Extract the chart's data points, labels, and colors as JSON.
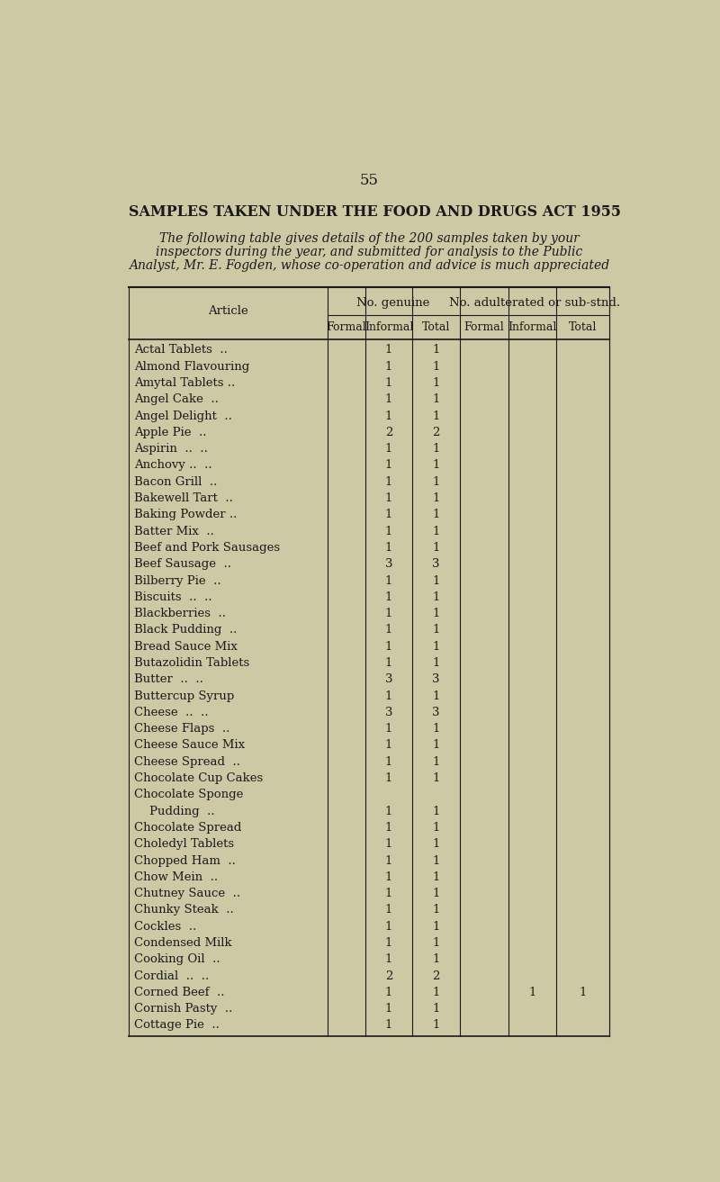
{
  "page_number": "55",
  "main_title": "SAMPLES TAKEN UNDER THE FOOD AND DRUGS ACT 1955",
  "subtitle_lines": [
    "The following table gives details of the 200 samples taken by your",
    "inspectors during the year, and submitted for analysis to the Public",
    "Analyst, Mr. E. Fogden, whose co-operation and advice is much appreciated"
  ],
  "col_group1": "No. genuine",
  "col_group2": "No. adulterated or sub-stnd.",
  "col_headers": [
    "Formal",
    "Informal",
    "Total",
    "Formal",
    "Informal",
    "Total"
  ],
  "article_col": "Article",
  "bg_color": "#cdc9a5",
  "text_color": "#1a1a1a",
  "rows": [
    {
      "article": "Actal Tablets  ..",
      "dots2": "..",
      "g_formal": "",
      "g_informal": "1",
      "g_total": "1",
      "a_formal": "",
      "a_informal": "",
      "a_total": ""
    },
    {
      "article": "Almond Flavouring",
      "dots2": "..",
      "g_formal": "",
      "g_informal": "1",
      "g_total": "1",
      "a_formal": "",
      "a_informal": "",
      "a_total": ""
    },
    {
      "article": "Amytal Tablets ..",
      "dots2": "..",
      "g_formal": "",
      "g_informal": "1",
      "g_total": "1",
      "a_formal": "",
      "a_informal": "",
      "a_total": ""
    },
    {
      "article": "Angel Cake  ..",
      "dots2": "..",
      "g_formal": "",
      "g_informal": "1",
      "g_total": "1",
      "a_formal": "",
      "a_informal": "",
      "a_total": ""
    },
    {
      "article": "Angel Delight  ..",
      "dots2": "..",
      "g_formal": "",
      "g_informal": "1",
      "g_total": "1",
      "a_formal": "",
      "a_informal": "",
      "a_total": ""
    },
    {
      "article": "Apple Pie  ..",
      "dots2": "..",
      "g_formal": "",
      "g_informal": "2",
      "g_total": "2",
      "a_formal": "",
      "a_informal": "",
      "a_total": ""
    },
    {
      "article": "Aspirin  ..  ..",
      "dots2": "..",
      "g_formal": "",
      "g_informal": "1",
      "g_total": "1",
      "a_formal": "",
      "a_informal": "",
      "a_total": ""
    },
    {
      "article": "Anchovy ..  ..",
      "dots2": "..",
      "g_formal": "",
      "g_informal": "1",
      "g_total": "1",
      "a_formal": "",
      "a_informal": "",
      "a_total": ""
    },
    {
      "article": "Bacon Grill  ..",
      "dots2": "..",
      "g_formal": "",
      "g_informal": "1",
      "g_total": "1",
      "a_formal": "",
      "a_informal": "",
      "a_total": ""
    },
    {
      "article": "Bakewell Tart  ..",
      "dots2": "..",
      "g_formal": "",
      "g_informal": "1",
      "g_total": "1",
      "a_formal": "",
      "a_informal": "",
      "a_total": ""
    },
    {
      "article": "Baking Powder ..",
      "dots2": "..",
      "g_formal": "",
      "g_informal": "1",
      "g_total": "1",
      "a_formal": "",
      "a_informal": "",
      "a_total": ""
    },
    {
      "article": "Batter Mix  ..",
      "dots2": "..",
      "g_formal": "",
      "g_informal": "1",
      "g_total": "1",
      "a_formal": "",
      "a_informal": "",
      "a_total": ""
    },
    {
      "article": "Beef and Pork Sausages",
      "dots2": "",
      "g_formal": "",
      "g_informal": "1",
      "g_total": "1",
      "a_formal": "",
      "a_informal": "",
      "a_total": ""
    },
    {
      "article": "Beef Sausage  ..",
      "dots2": "..",
      "g_formal": "",
      "g_informal": "3",
      "g_total": "3",
      "a_formal": "",
      "a_informal": "",
      "a_total": ""
    },
    {
      "article": "Bilberry Pie  ..",
      "dots2": "..",
      "g_formal": "",
      "g_informal": "1",
      "g_total": "1",
      "a_formal": "",
      "a_informal": "",
      "a_total": ""
    },
    {
      "article": "Biscuits  ..  ..",
      "dots2": "..",
      "g_formal": "",
      "g_informal": "1",
      "g_total": "1",
      "a_formal": "",
      "a_informal": "",
      "a_total": ""
    },
    {
      "article": "Blackberries  ..",
      "dots2": "..",
      "g_formal": "",
      "g_informal": "1",
      "g_total": "1",
      "a_formal": "",
      "a_informal": "",
      "a_total": ""
    },
    {
      "article": "Black Pudding  ..",
      "dots2": "..",
      "g_formal": "",
      "g_informal": "1",
      "g_total": "1",
      "a_formal": "",
      "a_informal": "",
      "a_total": ""
    },
    {
      "article": "Bread Sauce Mix",
      "dots2": "..",
      "g_formal": "",
      "g_informal": "1",
      "g_total": "1",
      "a_formal": "",
      "a_informal": "",
      "a_total": ""
    },
    {
      "article": "Butazolidin Tablets",
      "dots2": "..",
      "g_formal": "",
      "g_informal": "1",
      "g_total": "1",
      "a_formal": "",
      "a_informal": "",
      "a_total": ""
    },
    {
      "article": "Butter  ..  ..",
      "dots2": "..",
      "g_formal": "",
      "g_informal": "3",
      "g_total": "3",
      "a_formal": "",
      "a_informal": "",
      "a_total": ""
    },
    {
      "article": "Buttercup Syrup",
      "dots2": "..",
      "g_formal": "",
      "g_informal": "1",
      "g_total": "1",
      "a_formal": "",
      "a_informal": "",
      "a_total": ""
    },
    {
      "article": "Cheese  ..  ..",
      "dots2": "..",
      "g_formal": "",
      "g_informal": "3",
      "g_total": "3",
      "a_formal": "",
      "a_informal": "",
      "a_total": ""
    },
    {
      "article": "Cheese Flaps  ..",
      "dots2": "..",
      "g_formal": "",
      "g_informal": "1",
      "g_total": "1",
      "a_formal": "",
      "a_informal": "",
      "a_total": ""
    },
    {
      "article": "Cheese Sauce Mix",
      "dots2": "..",
      "g_formal": "",
      "g_informal": "1",
      "g_total": "1",
      "a_formal": "",
      "a_informal": "",
      "a_total": ""
    },
    {
      "article": "Cheese Spread  ..",
      "dots2": "..",
      "g_formal": "",
      "g_informal": "1",
      "g_total": "1",
      "a_formal": "",
      "a_informal": "",
      "a_total": ""
    },
    {
      "article": "Chocolate Cup Cakes",
      "dots2": "..",
      "g_formal": "",
      "g_informal": "1",
      "g_total": "1",
      "a_formal": "",
      "a_informal": "",
      "a_total": ""
    },
    {
      "article": "Chocolate Sponge",
      "dots2": "",
      "g_formal": "",
      "g_informal": "",
      "g_total": "",
      "a_formal": "",
      "a_informal": "",
      "a_total": "",
      "second_line": "    Pudding  ..",
      "sl_dots2": "..",
      "sl_g_informal": "1",
      "sl_g_total": "1"
    },
    {
      "article": "Chocolate Spread",
      "dots2": "..",
      "g_formal": "",
      "g_informal": "1",
      "g_total": "1",
      "a_formal": "",
      "a_informal": "",
      "a_total": ""
    },
    {
      "article": "Choledyl Tablets",
      "dots2": "..",
      "g_formal": "",
      "g_informal": "1",
      "g_total": "1",
      "a_formal": "",
      "a_informal": "",
      "a_total": ""
    },
    {
      "article": "Chopped Ham  ..",
      "dots2": "..",
      "g_formal": "",
      "g_informal": "1",
      "g_total": "1",
      "a_formal": "",
      "a_informal": "",
      "a_total": ""
    },
    {
      "article": "Chow Mein  ..",
      "dots2": "..",
      "g_formal": "",
      "g_informal": "1",
      "g_total": "1",
      "a_formal": "",
      "a_informal": "",
      "a_total": ""
    },
    {
      "article": "Chutney Sauce  ..",
      "dots2": "..",
      "g_formal": "",
      "g_informal": "1",
      "g_total": "1",
      "a_formal": "",
      "a_informal": "",
      "a_total": ""
    },
    {
      "article": "Chunky Steak  ..",
      "dots2": "..",
      "g_formal": "",
      "g_informal": "1",
      "g_total": "1",
      "a_formal": "",
      "a_informal": "",
      "a_total": ""
    },
    {
      "article": "Cockles  ..",
      "dots2": "..",
      "g_formal": "",
      "g_informal": "1",
      "g_total": "1",
      "a_formal": "",
      "a_informal": "",
      "a_total": ""
    },
    {
      "article": "Condensed Milk",
      "dots2": "..",
      "g_formal": "",
      "g_informal": "1",
      "g_total": "1",
      "a_formal": "",
      "a_informal": "",
      "a_total": ""
    },
    {
      "article": "Cooking Oil  ..",
      "dots2": "..",
      "g_formal": "",
      "g_informal": "1",
      "g_total": "1",
      "a_formal": "",
      "a_informal": "",
      "a_total": ""
    },
    {
      "article": "Cordial  ..  ..",
      "dots2": "..",
      "g_formal": "",
      "g_informal": "2",
      "g_total": "2",
      "a_formal": "",
      "a_informal": "",
      "a_total": ""
    },
    {
      "article": "Corned Beef  ..",
      "dots2": "..",
      "g_formal": "",
      "g_informal": "1",
      "g_total": "1",
      "a_formal": "",
      "a_informal": "1",
      "a_total": "1"
    },
    {
      "article": "Cornish Pasty  ..",
      "dots2": "..",
      "g_formal": "",
      "g_informal": "1",
      "g_total": "1",
      "a_formal": "",
      "a_informal": "",
      "a_total": ""
    },
    {
      "article": "Cottage Pie  ..",
      "dots2": "..",
      "g_formal": "",
      "g_informal": "1",
      "g_total": "1",
      "a_formal": "",
      "a_informal": "",
      "a_total": ""
    }
  ]
}
